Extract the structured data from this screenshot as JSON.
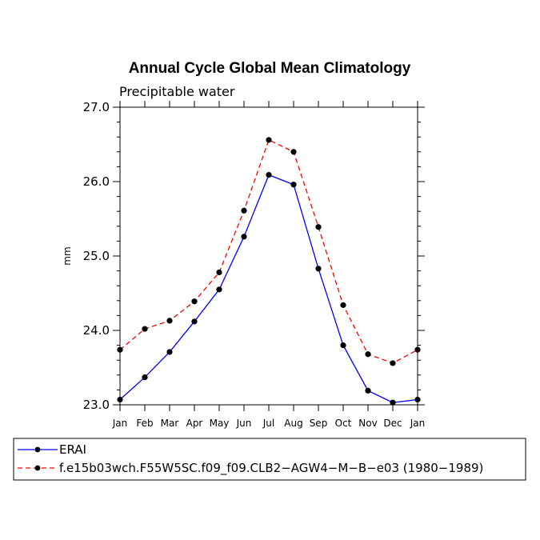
{
  "chart_data": {
    "type": "line",
    "title": "Annual Cycle Global Mean Climatology",
    "subtitle": "Precipitable water",
    "xlabel": "",
    "ylabel": "mm",
    "categories": [
      "Jan",
      "Feb",
      "Mar",
      "Apr",
      "May",
      "Jun",
      "Jul",
      "Aug",
      "Sep",
      "Oct",
      "Nov",
      "Dec",
      "Jan"
    ],
    "ylim": [
      23.0,
      27.0
    ],
    "yticks": [
      "23.0",
      "24.0",
      "25.0",
      "26.0",
      "27.0"
    ],
    "series": [
      {
        "name": "ERAI",
        "color": "#0000ff",
        "dash": "solid",
        "values": [
          23.07,
          23.37,
          23.71,
          24.12,
          24.55,
          25.26,
          26.09,
          25.96,
          24.83,
          23.8,
          23.19,
          23.03,
          23.07
        ]
      },
      {
        "name": "f.e15b03wch.F55W5SC.f09_f09.CLB2−AGW4−M−B−e03 (1980−1989)",
        "color": "#ff0000",
        "dash": "dashed",
        "values": [
          23.74,
          24.02,
          24.13,
          24.39,
          24.78,
          25.61,
          26.56,
          26.4,
          25.39,
          24.34,
          23.68,
          23.56,
          23.74
        ]
      }
    ],
    "legend_position": "bottom"
  }
}
